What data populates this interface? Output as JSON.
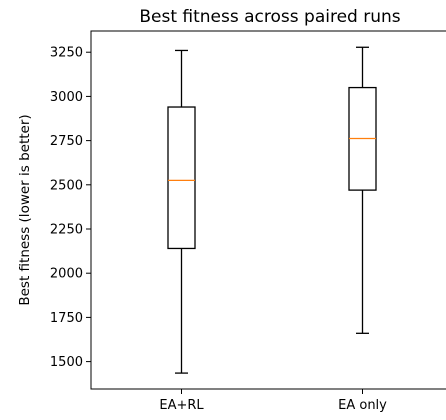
{
  "chart_data": {
    "type": "box",
    "title": "Best fitness across paired runs",
    "xlabel": "",
    "ylabel": "Best fitness (lower is better)",
    "categories": [
      "EA+RL",
      "EA only"
    ],
    "boxes": [
      {
        "name": "EA+RL",
        "whisker_low": 1435,
        "q1": 2140,
        "median": 2525,
        "q3": 2940,
        "whisker_high": 3260
      },
      {
        "name": "EA only",
        "whisker_low": 1660,
        "q1": 2470,
        "median": 2762,
        "q3": 3050,
        "whisker_high": 3278
      }
    ],
    "ylim": [
      1345,
      3370
    ],
    "yticks": [
      1500,
      1750,
      2000,
      2250,
      2500,
      2750,
      3000,
      3250
    ],
    "grid": false,
    "colors": {
      "box": "#000000",
      "median": "#ff7f0e"
    }
  }
}
